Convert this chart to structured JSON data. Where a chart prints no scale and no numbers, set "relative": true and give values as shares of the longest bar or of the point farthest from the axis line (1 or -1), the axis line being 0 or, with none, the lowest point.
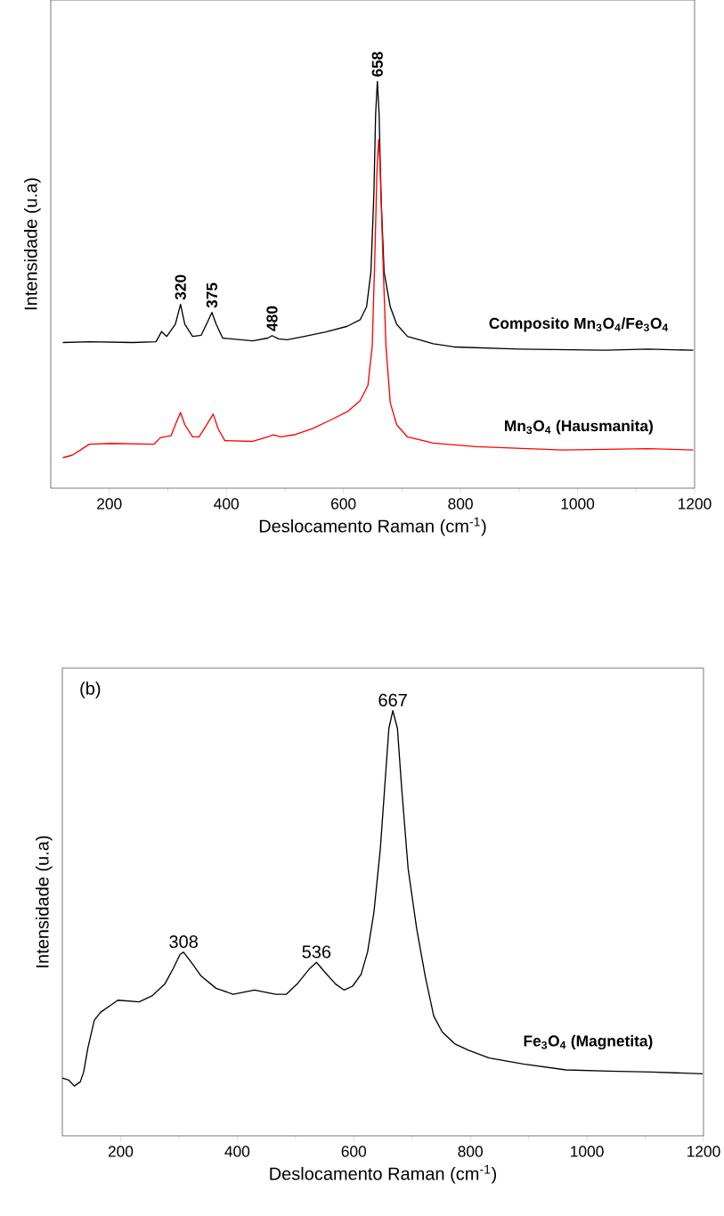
{
  "chart_data": [
    {
      "type": "line",
      "relative": true,
      "xlabel": "Deslocamento Raman (cm$^{-1}$)",
      "ylabel": "Intensidade (u.a)",
      "xlim": [
        100,
        1200
      ],
      "xticks": [
        200,
        400,
        600,
        800,
        1000,
        1200
      ],
      "tick_labels": "x",
      "grid": false,
      "legend": false,
      "annotations": [
        {
          "text": "320",
          "x": 321.7,
          "y": 0.452
        },
        {
          "text": "375",
          "x": 375.3,
          "y": 0.432
        },
        {
          "text": "480",
          "x": 478.1,
          "y": 0.375
        },
        {
          "text": "658",
          "x": 658,
          "y": 1.0
        }
      ],
      "series": [
        {
          "name": "Composito Mn$_{3}$O$_{4}$/Fe$_{3}$O$_{4}$",
          "color": "#000000",
          "x": [
            120.6,
            166,
            239.5,
            279.9,
            289.4,
            298.2,
            312.9,
            321.7,
            329,
            342.3,
            357,
            368,
            375.3,
            382.7,
            393.7,
            445,
            470.8,
            478.1,
            489.1,
            503.8,
            533.2,
            569.9,
            606.6,
            628.6,
            639.6,
            647,
            652.1,
            655,
            658,
            661,
            664,
            669.5,
            680,
            691,
            709.4,
            753.5,
            790.2,
            900.3,
            1047.1,
            1120.6,
            1197.7
          ],
          "values": [
            0.358,
            0.36,
            0.358,
            0.36,
            0.385,
            0.373,
            0.403,
            0.452,
            0.403,
            0.373,
            0.376,
            0.409,
            0.432,
            0.403,
            0.369,
            0.362,
            0.369,
            0.375,
            0.367,
            0.365,
            0.373,
            0.384,
            0.398,
            0.414,
            0.446,
            0.532,
            0.726,
            0.919,
            1.0,
            0.919,
            0.726,
            0.532,
            0.446,
            0.403,
            0.373,
            0.355,
            0.347,
            0.342,
            0.339,
            0.342,
            0.339
          ]
        },
        {
          "name": "Mn$_{3}$O$_{4}$ (Hausmanita)",
          "color": "#ff0000",
          "x": [
            120.6,
            136.7,
            166,
            202.8,
            276.2,
            287.2,
            294.6,
            305.6,
            312.9,
            321.7,
            329,
            342.3,
            353.3,
            364.3,
            377.5,
            386.3,
            397.4,
            445,
            470.8,
            480.3,
            492.8,
            518.5,
            547.9,
            577.2,
            606.6,
            628.6,
            641.9,
            649.2,
            653.6,
            657.3,
            660.2,
            663.2,
            667.5,
            672.7,
            680,
            691,
            709.4,
            753.5,
            826.9,
            973.7,
            1120.6,
            1197.7
          ],
          "values": [
            0.075,
            0.081,
            0.108,
            0.11,
            0.108,
            0.124,
            0.126,
            0.129,
            0.156,
            0.186,
            0.156,
            0.126,
            0.126,
            0.151,
            0.182,
            0.145,
            0.117,
            0.115,
            0.126,
            0.131,
            0.126,
            0.132,
            0.147,
            0.167,
            0.188,
            0.215,
            0.253,
            0.349,
            0.565,
            0.78,
            0.857,
            0.78,
            0.565,
            0.349,
            0.21,
            0.156,
            0.126,
            0.111,
            0.102,
            0.094,
            0.097,
            0.094
          ]
        }
      ]
    },
    {
      "type": "line",
      "relative": true,
      "xlabel": "Deslocamento Raman (cm$^{-1}$)",
      "ylabel": "Intensidade (u.a)",
      "xlim": [
        100,
        1200
      ],
      "xticks": [
        200,
        400,
        600,
        800,
        1000,
        1200
      ],
      "tick_labels": "x",
      "grid": false,
      "legend": false,
      "annotations": [
        "(b)",
        {
          "text": "308",
          "x": 308,
          "y": 0.432
        },
        {
          "text": "536",
          "x": 536,
          "y": 0.408
        },
        {
          "text": "667",
          "x": 667,
          "y": 1.0
        }
      ],
      "series": [
        {
          "name": "Fe$_{3}$O$_{4}$ (Magnetita)",
          "color": "#000000",
          "x": [
            100,
            111,
            120.5,
            130.8,
            136.6,
            143.9,
            154.9,
            165.9,
            180.6,
            195.2,
            231.8,
            253.8,
            275.8,
            290.4,
            302,
            308,
            323.4,
            338,
            363.6,
            392.9,
            429.6,
            466.2,
            484.5,
            502.8,
            524.8,
            536,
            550.4,
            568.7,
            583.3,
            598,
            612.6,
            623.6,
            634.6,
            645.6,
            652.9,
            660.2,
            667,
            674.9,
            682.2,
            693.2,
            707.8,
            722.5,
            737.1,
            751.8,
            773.7,
            795.7,
            832.3,
            890.9,
            964.1,
            1037.4,
            1110.6,
            1198.5
          ],
          "values": [
            0.136,
            0.131,
            0.117,
            0.127,
            0.15,
            0.207,
            0.272,
            0.291,
            0.305,
            0.319,
            0.315,
            0.329,
            0.357,
            0.394,
            0.427,
            0.432,
            0.404,
            0.376,
            0.347,
            0.333,
            0.343,
            0.333,
            0.333,
            0.357,
            0.394,
            0.408,
            0.385,
            0.357,
            0.343,
            0.352,
            0.38,
            0.432,
            0.526,
            0.676,
            0.817,
            0.958,
            1.0,
            0.958,
            0.817,
            0.629,
            0.488,
            0.376,
            0.282,
            0.244,
            0.216,
            0.202,
            0.183,
            0.169,
            0.155,
            0.152,
            0.15,
            0.146
          ]
        }
      ]
    }
  ]
}
